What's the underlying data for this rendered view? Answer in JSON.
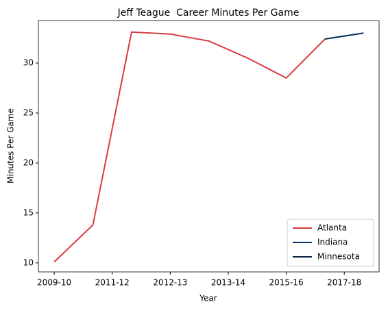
{
  "chart_data": {
    "type": "line",
    "title": "Jeff Teague  Career Minutes Per Game",
    "xlabel": "Year",
    "ylabel": "Minutes Per Game",
    "x": [
      0,
      1,
      2,
      3,
      4,
      5,
      6,
      7,
      8
    ],
    "series": [
      {
        "name": "Atlanta",
        "color": "#d9393f",
        "values": [
          10.1,
          13.8,
          33.1,
          32.9,
          32.2,
          30.5,
          28.5,
          32.4,
          null
        ]
      },
      {
        "name": "Indiana",
        "color": "#002d62",
        "values": [
          null,
          null,
          null,
          null,
          null,
          null,
          null,
          32.4,
          33.0
        ]
      },
      {
        "name": "Minnesota",
        "color": "#0c2340",
        "values": [
          null,
          null,
          null,
          null,
          null,
          null,
          null,
          null,
          33.0
        ]
      }
    ],
    "xlim": [
      -0.41,
      8.4
    ],
    "xticks": [
      {
        "value": 0,
        "label": "2009-10"
      },
      {
        "value": 1.5,
        "label": "2011-12"
      },
      {
        "value": 3,
        "label": "2012-13"
      },
      {
        "value": 4.5,
        "label": "2013-14"
      },
      {
        "value": 6,
        "label": "2015-16"
      },
      {
        "value": 7.5,
        "label": "2017-18"
      }
    ],
    "ylim": [
      9.1,
      34.25
    ],
    "yticks": [
      10,
      15,
      20,
      25,
      30
    ],
    "grid": false,
    "legend": "lower right"
  }
}
